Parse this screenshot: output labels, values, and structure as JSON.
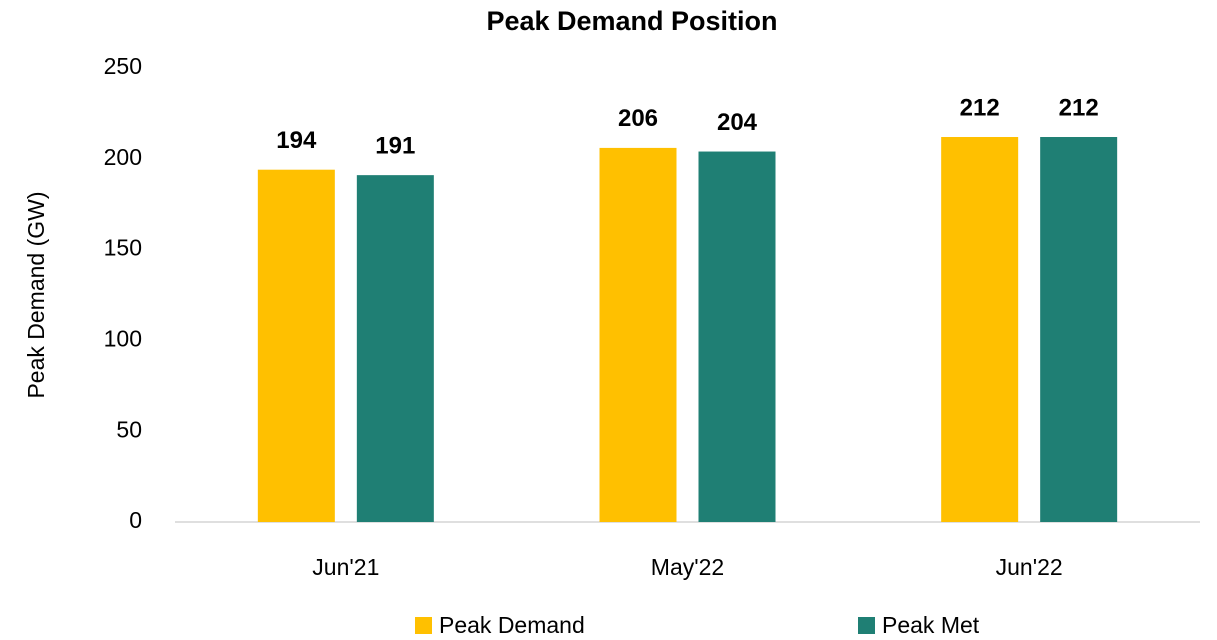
{
  "chart_data": {
    "type": "bar",
    "title": "Peak Demand Position",
    "y_label": "Peak Demand (GW)",
    "categories": [
      "Jun'21",
      "May'22",
      "Jun'22"
    ],
    "series": [
      {
        "name": "Peak Demand",
        "color": "#ffc000",
        "values": [
          194,
          206,
          212
        ]
      },
      {
        "name": "Peak Met",
        "color": "#1f7f74",
        "values": [
          191,
          204,
          212
        ]
      }
    ],
    "ylim": [
      0,
      250
    ],
    "yticks": [
      0,
      50,
      100,
      150,
      200,
      250
    ],
    "grid": false,
    "legend": "bottom"
  }
}
